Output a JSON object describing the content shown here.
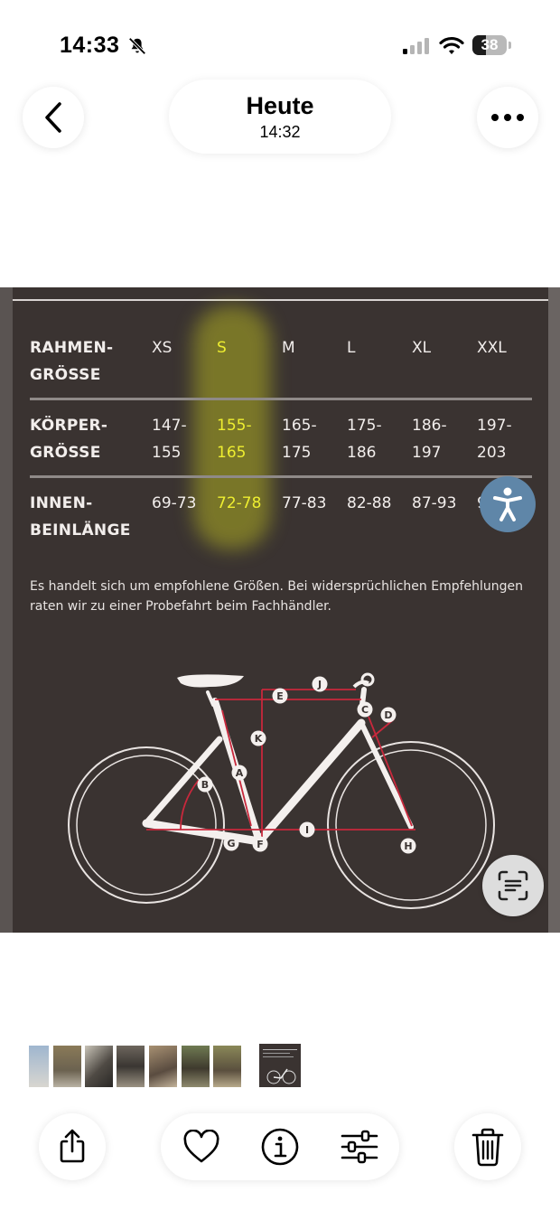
{
  "status_bar": {
    "time": "14:33",
    "battery": "38"
  },
  "nav": {
    "title": "Heute",
    "subtitle": "14:32"
  },
  "size_table": {
    "headers": [
      "XS",
      "S",
      "M",
      "L",
      "XL",
      "XXL"
    ],
    "highlighted_column": "S",
    "rows": [
      {
        "label_line1": "RAHMEN-",
        "label_line2": "GRÖSSE",
        "values": [
          "XS",
          "S",
          "M",
          "L",
          "XL",
          "XXL"
        ]
      },
      {
        "label_line1": "KÖRPER-",
        "label_line2": "GRÖSSE",
        "values": [
          "147-\n155",
          "155-\n165",
          "165-\n175",
          "175-\n186",
          "186-\n197",
          "197-\n203"
        ]
      },
      {
        "label_line1": "INNEN-",
        "label_line2": "BEINLÄNGE",
        "values": [
          "69-73",
          "72-78",
          "77-83",
          "82-88",
          "87-93",
          "9"
        ]
      }
    ]
  },
  "note": "Es handelt sich um empfohlene Größen. Bei widersprüchlichen Empfehlungen raten wir zu einer Probefahrt beim Fachhändler.",
  "bike_labels": {
    "A": "A",
    "B": "B",
    "C": "C",
    "D": "D",
    "E": "E",
    "F": "F",
    "G": "G",
    "H": "H",
    "I": "I",
    "J": "J",
    "K": "K"
  },
  "colors": {
    "photo_bg": "#3a3331",
    "highlight": "#eeee30",
    "measure_red": "#c8283c",
    "accessibility": "#5f86a8"
  },
  "icons": {
    "back": "chevron-left-icon",
    "more": "ellipsis-icon",
    "share": "share-icon",
    "favorite": "heart-icon",
    "info": "info-icon",
    "adjust": "sliders-icon",
    "delete": "trash-icon",
    "accessibility": "accessibility-icon",
    "live_text": "text-scan-icon"
  }
}
